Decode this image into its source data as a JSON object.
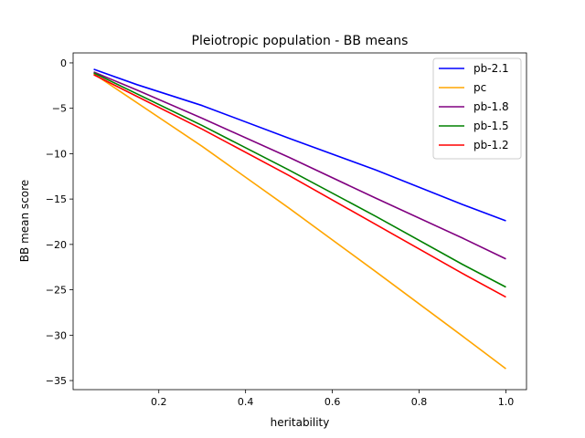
{
  "chart_data": {
    "type": "line",
    "title": "Pleiotropic population - BB means",
    "xlabel": "heritability",
    "ylabel": "BB mean score",
    "xlim": [
      0.0025,
      1.0475
    ],
    "ylim": [
      -36.0,
      1.1
    ],
    "xticks": [
      0.2,
      0.4,
      0.6,
      0.8,
      1.0
    ],
    "xtick_labels": [
      "0.2",
      "0.4",
      "0.6",
      "0.8",
      "1.0"
    ],
    "yticks": [
      0,
      -5,
      -10,
      -15,
      -20,
      -25,
      -30,
      -35
    ],
    "ytick_labels": [
      "0",
      "−5",
      "−10",
      "−15",
      "−20",
      "−25",
      "−30",
      "−35"
    ],
    "grid": false,
    "legend_position": "top-right",
    "series": [
      {
        "name": "pb-2.1",
        "color": "#0000ff",
        "x": [
          0.05,
          0.15,
          0.3,
          0.5,
          0.7,
          0.9,
          1.0
        ],
        "y": [
          -0.7,
          -2.4,
          -4.7,
          -8.3,
          -11.8,
          -15.6,
          -17.4
        ]
      },
      {
        "name": "pc",
        "color": "#ffa500",
        "x": [
          0.05,
          0.3,
          0.5,
          0.7,
          0.9,
          1.0
        ],
        "y": [
          -1.2,
          -9.2,
          -16.0,
          -23.0,
          -30.1,
          -33.7
        ]
      },
      {
        "name": "pb-1.8",
        "color": "#800080",
        "x": [
          0.05,
          0.15,
          0.3,
          0.5,
          0.7,
          0.9,
          1.0
        ],
        "y": [
          -1.0,
          -3.0,
          -6.1,
          -10.4,
          -14.9,
          -19.3,
          -21.6
        ]
      },
      {
        "name": "pb-1.5",
        "color": "#008000",
        "x": [
          0.05,
          0.3,
          0.5,
          0.7,
          0.9,
          1.0
        ],
        "y": [
          -1.1,
          -6.9,
          -11.8,
          -16.9,
          -22.2,
          -24.7
        ]
      },
      {
        "name": "pb-1.2",
        "color": "#ff0000",
        "x": [
          0.05,
          0.3,
          0.5,
          0.7,
          0.9,
          1.0
        ],
        "y": [
          -1.3,
          -7.3,
          -12.4,
          -17.8,
          -23.2,
          -25.8
        ]
      }
    ]
  }
}
